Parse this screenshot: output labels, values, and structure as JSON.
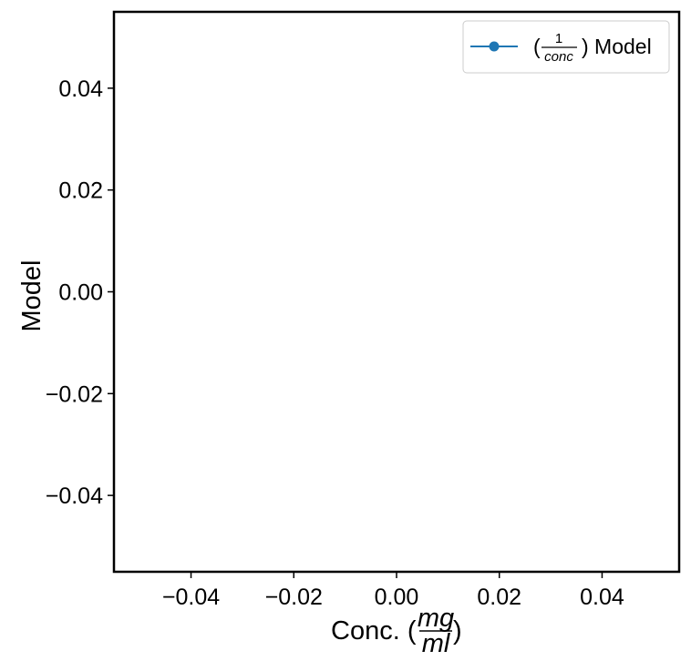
{
  "chart_data": {
    "type": "line",
    "title": "",
    "xlabel": {
      "prefix": "Conc. (",
      "frac_num": "mg",
      "frac_den": "ml",
      "suffix": ")"
    },
    "ylabel": "Model",
    "xlim": [
      -0.055,
      0.055
    ],
    "ylim": [
      -0.055,
      0.055
    ],
    "xticks": [
      -0.04,
      -0.02,
      0.0,
      0.02,
      0.04
    ],
    "yticks": [
      -0.04,
      -0.02,
      0.0,
      0.02,
      0.04
    ],
    "xtick_labels": [
      "−0.04",
      "−0.02",
      "0.00",
      "0.02",
      "0.04"
    ],
    "ytick_labels": [
      "−0.04",
      "−0.02",
      "0.00",
      "0.02",
      "0.04"
    ],
    "grid": false,
    "legend_position": "top-right",
    "series": [
      {
        "name": {
          "open": "(",
          "frac_num": "1",
          "frac_den": "conc",
          "close": ") Model"
        },
        "color": "#1f77b4",
        "marker": "circle",
        "x": [],
        "y": []
      }
    ]
  }
}
